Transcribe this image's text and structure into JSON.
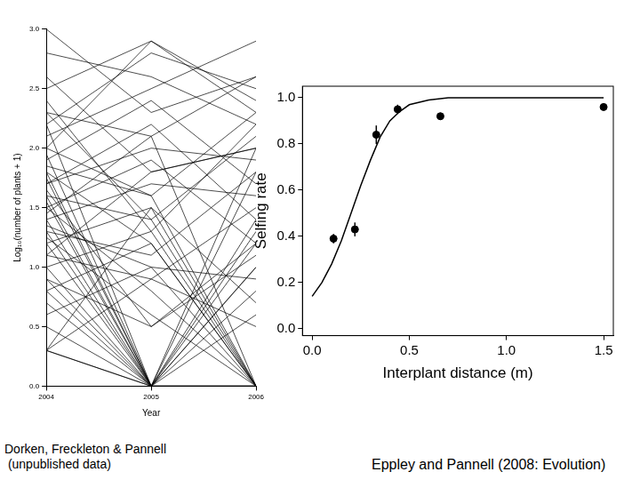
{
  "chart_data": [
    {
      "type": "line",
      "x_label": "Year",
      "y_label": "Log₁₀(number of plants + 1)",
      "annotation": [
        "Dorken, Freckleton & Pannell",
        " (unpublished data)"
      ],
      "x": [
        2004,
        2005,
        2006
      ],
      "xlim": [
        2004,
        2006
      ],
      "xticks": [
        2004,
        2005,
        2006
      ],
      "ylim": [
        0,
        3
      ],
      "yticks": [
        {
          "value": 0,
          "label": "0.0"
        },
        {
          "value": 0.5,
          "label": "0.5"
        },
        {
          "value": 1,
          "label": "1.0"
        },
        {
          "value": 1.5,
          "label": "1.5"
        },
        {
          "value": 2,
          "label": "2.0"
        },
        {
          "value": 2.5,
          "label": "2.5"
        },
        {
          "value": 3,
          "label": "3.0"
        }
      ],
      "grid": false,
      "color": "#000000",
      "series": [
        {
          "values": [
            3.0,
            2.3,
            2.6
          ]
        },
        {
          "values": [
            2.5,
            2.9,
            2.4
          ]
        },
        {
          "values": [
            2.3,
            2.1,
            2.6
          ]
        },
        {
          "values": [
            2.2,
            2.8,
            2.5
          ]
        },
        {
          "values": [
            2.0,
            1.6,
            2.3
          ]
        },
        {
          "values": [
            1.9,
            2.4,
            1.7
          ]
        },
        {
          "values": [
            1.8,
            1.2,
            0
          ]
        },
        {
          "values": [
            1.8,
            0,
            1.4
          ]
        },
        {
          "values": [
            1.7,
            2.0,
            1.9
          ]
        },
        {
          "values": [
            1.6,
            1.4,
            2.1
          ]
        },
        {
          "values": [
            1.6,
            0,
            0
          ]
        },
        {
          "values": [
            1.5,
            1.9,
            1.2
          ]
        },
        {
          "values": [
            1.5,
            0.8,
            0
          ]
        },
        {
          "values": [
            1.4,
            0,
            1.0
          ]
        },
        {
          "values": [
            1.4,
            1.7,
            1.6
          ]
        },
        {
          "values": [
            1.3,
            1.1,
            1.8
          ]
        },
        {
          "values": [
            1.3,
            0,
            0
          ]
        },
        {
          "values": [
            1.2,
            1.5,
            0.7
          ]
        },
        {
          "values": [
            1.2,
            0,
            1.3
          ]
        },
        {
          "values": [
            1.1,
            0.9,
            1.5
          ]
        },
        {
          "values": [
            1.0,
            0,
            0
          ]
        },
        {
          "values": [
            1.0,
            1.3,
            0
          ]
        },
        {
          "values": [
            0.9,
            0.5,
            1.1
          ]
        },
        {
          "values": [
            0.9,
            0,
            0.6
          ]
        },
        {
          "values": [
            0.8,
            1.2,
            0
          ]
        },
        {
          "values": [
            0.8,
            0,
            1.0
          ]
        },
        {
          "values": [
            0.7,
            0,
            0
          ]
        },
        {
          "values": [
            0.6,
            1.0,
            0.9
          ]
        },
        {
          "values": [
            0.5,
            0,
            0
          ]
        },
        {
          "values": [
            0.3,
            0,
            0
          ]
        },
        {
          "values": [
            0.3,
            1.5,
            0
          ]
        },
        {
          "values": [
            2.6,
            1.8,
            2.0
          ]
        },
        {
          "values": [
            2.1,
            2.5,
            2.9
          ]
        },
        {
          "values": [
            1.7,
            2.2,
            1.4
          ]
        },
        {
          "values": [
            2.4,
            1.3,
            2.2
          ]
        },
        {
          "values": [
            1.95,
            0,
            1.8
          ]
        },
        {
          "values": [
            1.45,
            2.1,
            0
          ]
        },
        {
          "values": [
            1.25,
            0.6,
            0
          ]
        },
        {
          "values": [
            0.3,
            0.9,
            0.5
          ]
        },
        {
          "values": [
            2.8,
            2.6,
            2.2
          ]
        },
        {
          "values": [
            1.85,
            1.6,
            0
          ]
        },
        {
          "values": [
            1.55,
            0,
            0.8
          ]
        },
        {
          "values": [
            1.1,
            1.8,
            2.0
          ]
        },
        {
          "values": [
            2.3,
            1.4,
            0
          ]
        },
        {
          "values": [
            1.65,
            0.5,
            1.2
          ]
        },
        {
          "values": [
            0.3,
            0,
            1.2
          ]
        },
        {
          "values": [
            2.0,
            2.9,
            2.3
          ]
        },
        {
          "values": [
            1.35,
            1.0,
            0
          ]
        },
        {
          "values": [
            1.75,
            0,
            0
          ]
        },
        {
          "values": [
            2.2,
            0,
            2.0
          ]
        }
      ]
    },
    {
      "type": "scatter",
      "x_label": "Interplant distance (m)",
      "y_label": "Selfing rate",
      "annotation": [
        "Eppley and Pannell (2008: Evolution)"
      ],
      "xlim": [
        -0.05,
        1.55
      ],
      "xticks": [
        {
          "value": 0,
          "label": "0.0"
        },
        {
          "value": 0.5,
          "label": "0.5"
        },
        {
          "value": 1,
          "label": "1.0"
        },
        {
          "value": 1.5,
          "label": "1.5"
        }
      ],
      "ylim": [
        -0.03,
        1.05
      ],
      "yticks": [
        {
          "value": 0,
          "label": "0.0"
        },
        {
          "value": 0.2,
          "label": "0.2"
        },
        {
          "value": 0.4,
          "label": "0.4"
        },
        {
          "value": 0.6,
          "label": "0.6"
        },
        {
          "value": 0.8,
          "label": "0.8"
        },
        {
          "value": 1,
          "label": "1.0"
        }
      ],
      "grid": false,
      "series": [
        {
          "type": "scatter",
          "color": "#000000",
          "marker": "circle",
          "x": [
            0.11,
            0.22,
            0.33,
            0.44,
            0.66,
            1.5
          ],
          "values": [
            0.39,
            0.43,
            0.84,
            0.95,
            0.92,
            0.96
          ],
          "errors": [
            0.02,
            0.03,
            0.04,
            0.02,
            0.015,
            0.01
          ]
        },
        {
          "type": "line",
          "color": "#000000",
          "line_style": "solid",
          "x": [
            0,
            0.05,
            0.1,
            0.15,
            0.2,
            0.25,
            0.3,
            0.35,
            0.4,
            0.45,
            0.5,
            0.6,
            0.7,
            0.8,
            1.0,
            1.2,
            1.5
          ],
          "values": [
            0.14,
            0.2,
            0.28,
            0.38,
            0.5,
            0.62,
            0.73,
            0.83,
            0.9,
            0.94,
            0.97,
            0.99,
            1.0,
            1.0,
            1.0,
            1.0,
            1.0
          ]
        }
      ]
    }
  ]
}
